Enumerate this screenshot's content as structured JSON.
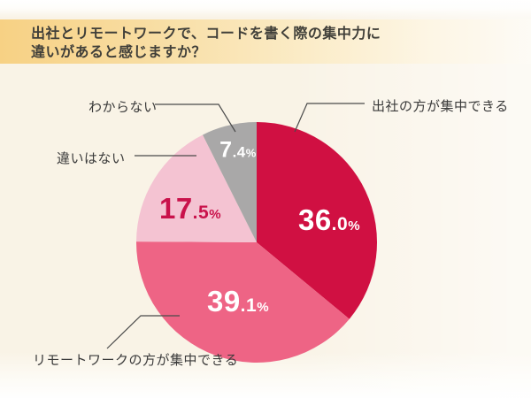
{
  "header": {
    "title_line1": "出社とリモートワークで、コードを書く際の集中力に",
    "title_line2": "違いがあると感じますか？"
  },
  "chart_data": {
    "type": "pie",
    "title": "出社とリモートワークで、コードを書く際の集中力に違いがあると感じますか？",
    "start_angle_deg": 0,
    "direction": "clockwise",
    "legend_position": "callout-labels",
    "slices": [
      {
        "id": "office",
        "label": "出社の方が集中できる",
        "value": 36.0,
        "display_int": "36",
        "display_frac": ".0",
        "display_pct": "%",
        "color": "#d01042",
        "text_color": "#ffffff"
      },
      {
        "id": "remote",
        "label": "リモートワークの方が集中できる",
        "value": 39.1,
        "display_int": "39",
        "display_frac": ".1",
        "display_pct": "%",
        "color": "#ee6485",
        "text_color": "#ffffff"
      },
      {
        "id": "nodiff",
        "label": "違いはない",
        "value": 17.5,
        "display_int": "17",
        "display_frac": ".5",
        "display_pct": "%",
        "color": "#f4c3d2",
        "text_color": "#c9124b"
      },
      {
        "id": "unknown",
        "label": "わからない",
        "value": 7.4,
        "display_int": "7",
        "display_frac": ".4",
        "display_pct": "%",
        "color": "#a9a8a8",
        "text_color": "#ffffff"
      }
    ]
  },
  "colors": {
    "band_left": "#f7d184",
    "band_right": "#fffdf6",
    "background_cream": "#f9f3e6",
    "leader_line": "#4a4a4a",
    "title_text": "#403f39",
    "label_text": "#3a3a3a"
  }
}
